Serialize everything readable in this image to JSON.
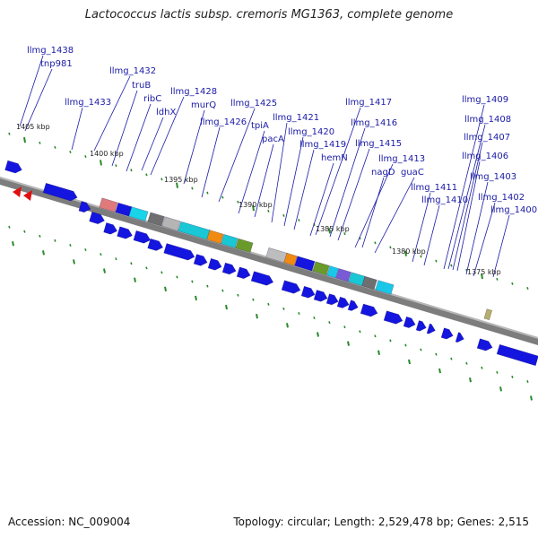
{
  "title": "Lactococcus lactis subsp. cremoris MG1363, complete genome",
  "footer": {
    "accession": "Accession: NC_009004",
    "summary": "Topology: circular; Length: 2,529,478 bp; Genes: 2,515"
  },
  "colors": {
    "label": "#1a1aa6",
    "gene_forward": "#1515e0",
    "backbone": "#7d7d7d",
    "tick": "#2a8a2a"
  },
  "kbp_labels": [
    "1405 kbp",
    "1400 kbp",
    "1395 kbp",
    "1390 kbp",
    "1385 kbp",
    "1380 kbp",
    "1375 kbp"
  ],
  "gene_labels": [
    "llmg_1438",
    "tnp981",
    "llmg_1432",
    "truB",
    "llmg_1433",
    "ribC",
    "ldhX",
    "llmg_1428",
    "murQ",
    "llmg_1425",
    "llmg_1426",
    "tpiA",
    "pacA",
    "llmg_1421",
    "llmg_1420",
    "llmg_1419",
    "llmg_1417",
    "llmg_1416",
    "hemN",
    "llmg_1415",
    "llmg_1413",
    "nagD",
    "guaC",
    "llmg_1411",
    "llmg_1410",
    "llmg_1409",
    "llmg_1408",
    "llmg_1407",
    "llmg_1406",
    "llmg_1403",
    "llmg_1402",
    "llmg_1400"
  ]
}
